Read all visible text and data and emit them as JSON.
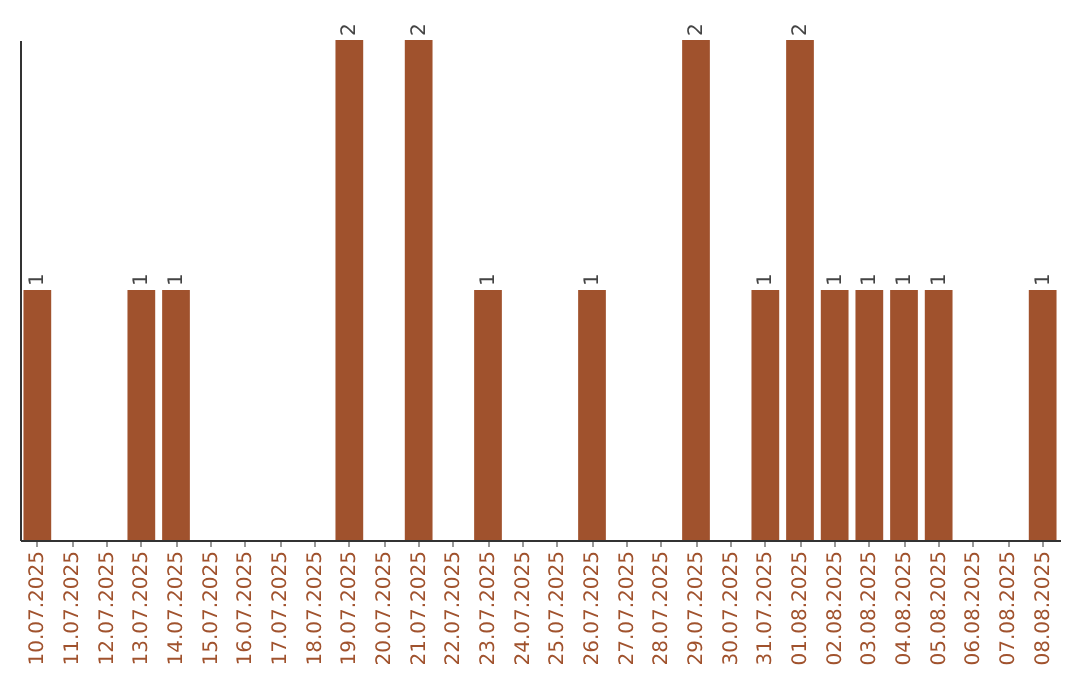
{
  "chart_data": {
    "type": "bar",
    "categories": [
      "10.07.2025",
      "11.07.2025",
      "12.07.2025",
      "13.07.2025",
      "14.07.2025",
      "15.07.2025",
      "16.07.2025",
      "17.07.2025",
      "18.07.2025",
      "19.07.2025",
      "20.07.2025",
      "21.07.2025",
      "22.07.2025",
      "23.07.2025",
      "24.07.2025",
      "25.07.2025",
      "26.07.2025",
      "27.07.2025",
      "28.07.2025",
      "29.07.2025",
      "30.07.2025",
      "31.07.2025",
      "01.08.2025",
      "02.08.2025",
      "03.08.2025",
      "04.08.2025",
      "05.08.2025",
      "06.08.2025",
      "07.08.2025",
      "08.08.2025"
    ],
    "values": [
      1,
      0,
      0,
      1,
      1,
      0,
      0,
      0,
      0,
      2,
      0,
      2,
      0,
      1,
      0,
      0,
      1,
      0,
      0,
      2,
      0,
      1,
      2,
      1,
      1,
      1,
      1,
      0,
      0,
      1
    ],
    "value_labels": [
      "1",
      null,
      null,
      "1",
      "1",
      null,
      null,
      null,
      null,
      "2",
      null,
      "2",
      null,
      "1",
      null,
      null,
      "1",
      null,
      null,
      "2",
      null,
      "1",
      "2",
      "1",
      "1",
      "1",
      "1",
      null,
      null,
      "1"
    ],
    "color": "#a0522d",
    "ylim": [
      0,
      2
    ],
    "tick_labels": "x",
    "grid": false
  }
}
